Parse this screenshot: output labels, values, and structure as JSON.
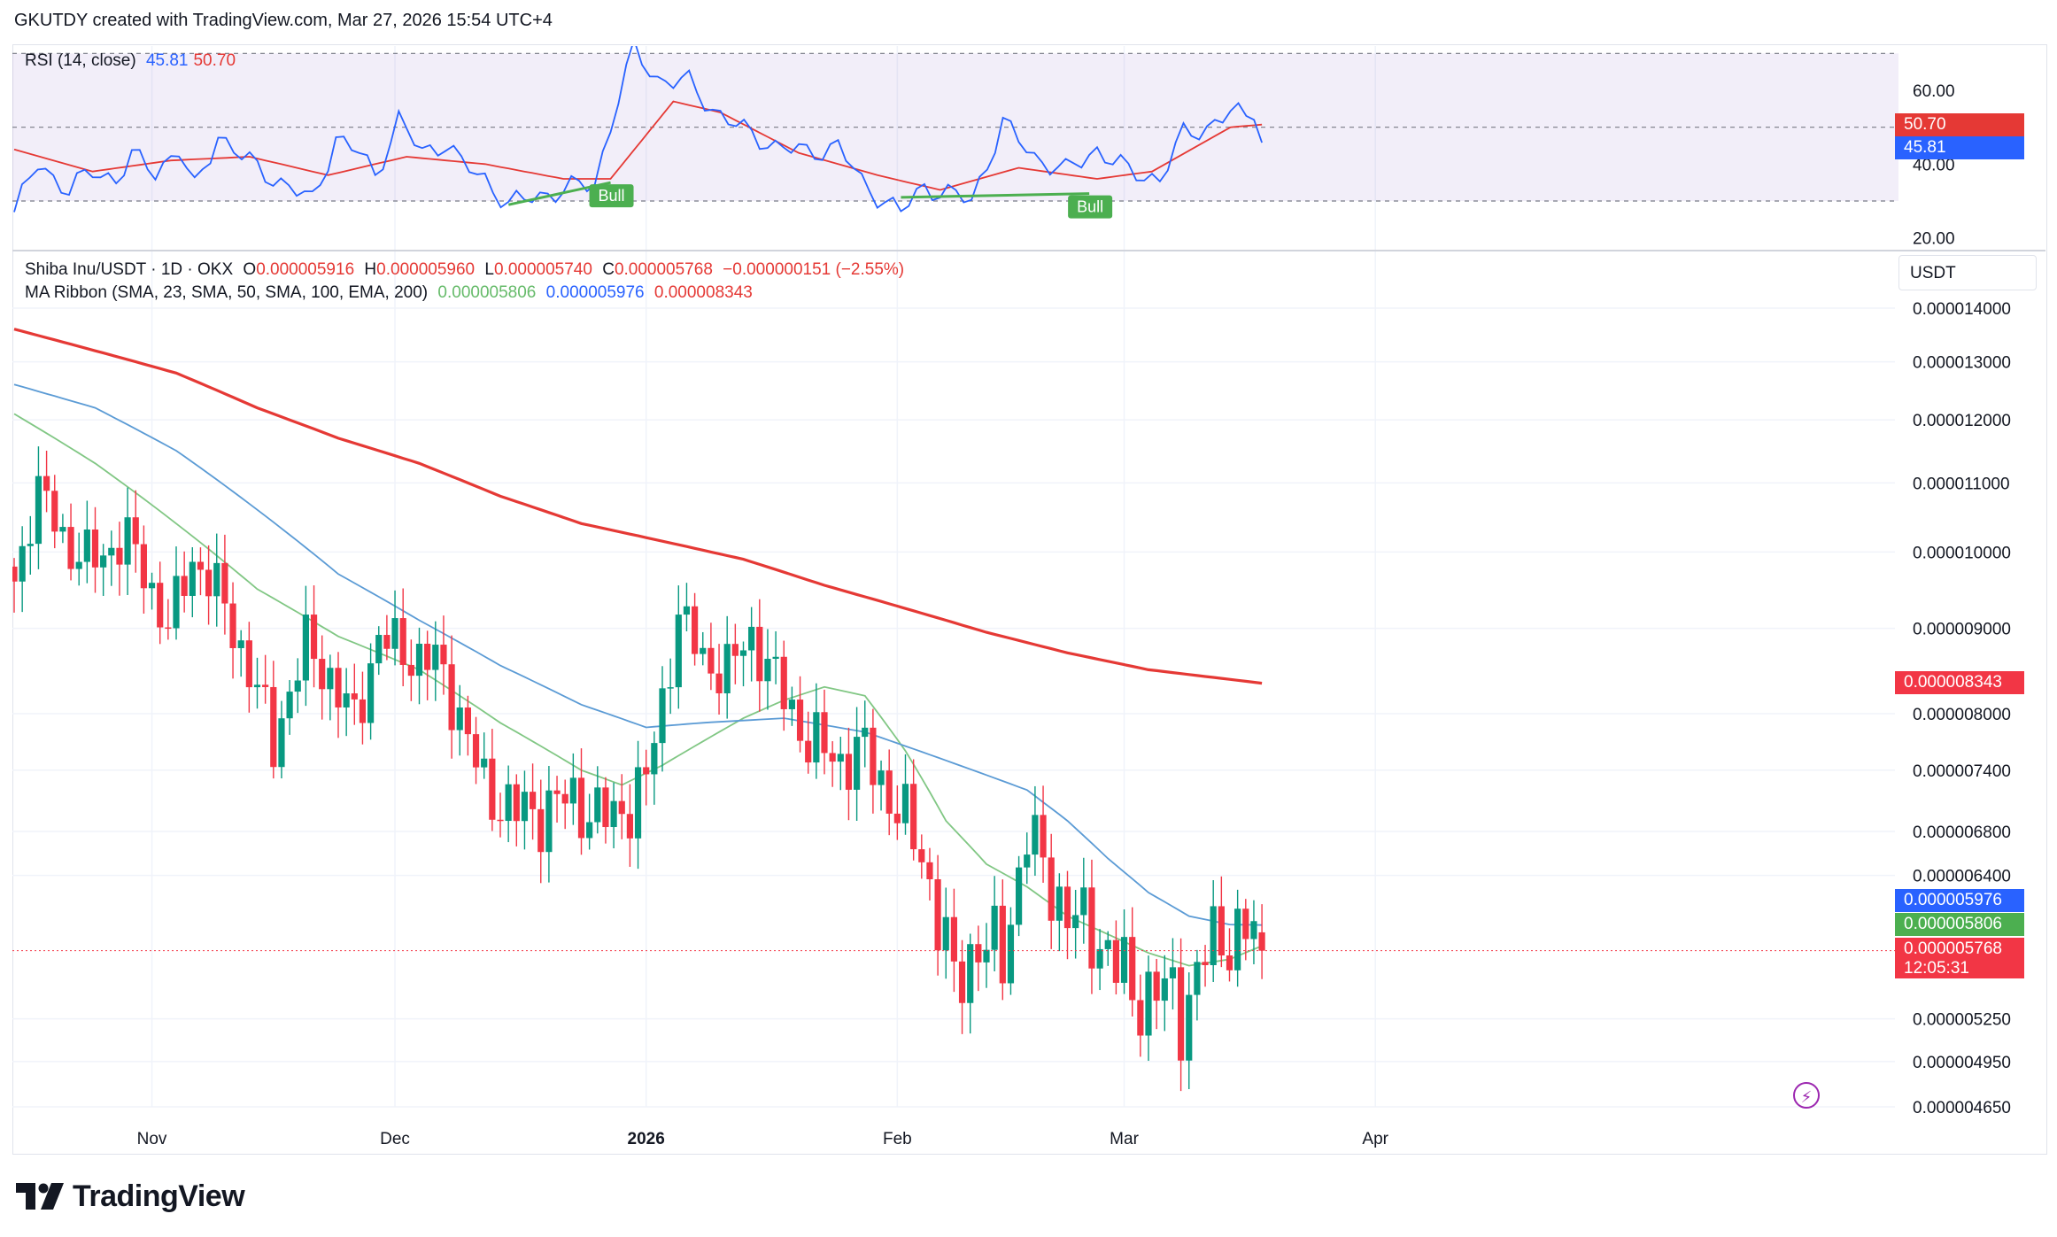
{
  "header": {
    "attribution": "GKUTDY created with TradingView.com, Mar 27, 2026 15:54 UTC+4"
  },
  "rsi": {
    "title": "RSI (14, close)",
    "value": "45.81",
    "ma_value": "50.70",
    "axis_ticks": [
      "60.00",
      "40.00",
      "20.00"
    ],
    "signal_label_1": "Bull",
    "signal_label_2": "Bull",
    "colors": {
      "rsi": "#2962ff",
      "ma": "#e53935",
      "band": "#7e57c2",
      "bull": "#4caf50"
    }
  },
  "main": {
    "symbol_line": "Shiba Inu/USDT · 1D · OKX",
    "o_label": "O",
    "o_value": "0.000005916",
    "h_label": "H",
    "h_value": "0.000005960",
    "l_label": "L",
    "l_value": "0.000005740",
    "c_label": "C",
    "c_value": "0.000005768",
    "change": "−0.000000151 (−2.55%)",
    "ribbon_title": "MA Ribbon (SMA, 23, SMA, 50, SMA, 100, EMA, 200)",
    "ribbon_v1": "0.000005806",
    "ribbon_v2": "0.000005976",
    "ribbon_v3": "0.000008343",
    "currency": "USDT",
    "last_price": "0.000005768",
    "countdown": "12:05:31",
    "ma50_price": "0.000005976",
    "ma23_price": "0.000005806",
    "ema200_price": "0.000008343"
  },
  "brand": {
    "name": "TradingView"
  },
  "chart_data": {
    "type": "candlestick",
    "title": "Shiba Inu/USDT · 1D · OKX",
    "xlabel": "",
    "ylabel": "USDT",
    "scale": "log",
    "ylim": [
      4.65e-06,
      1.45e-05
    ],
    "y_ticks": [
      "0.000014000",
      "0.000013000",
      "0.000012000",
      "0.000011000",
      "0.000010000",
      "0.000009000",
      "0.000008000",
      "0.000007400",
      "0.000006800",
      "0.000006400",
      "0.000005250",
      "0.000004950",
      "0.000004650"
    ],
    "x_ticks": [
      "Nov",
      "Dec",
      "2026",
      "Feb",
      "Mar",
      "Apr"
    ],
    "x_tick_days": [
      17,
      47,
      78,
      109,
      137,
      168
    ],
    "days": 155,
    "close_checkpoints": [
      [
        0,
        9.6
      ],
      [
        3,
        10.9
      ],
      [
        7,
        10.0
      ],
      [
        10,
        9.9
      ],
      [
        14,
        10.2
      ],
      [
        19,
        9.0
      ],
      [
        22,
        9.9
      ],
      [
        25,
        9.5
      ],
      [
        29,
        8.5
      ],
      [
        32,
        7.7
      ],
      [
        36,
        8.8
      ],
      [
        39,
        8.4
      ],
      [
        42,
        7.9
      ],
      [
        45,
        8.9
      ],
      [
        48,
        8.7
      ],
      [
        52,
        8.6
      ],
      [
        55,
        8.0
      ],
      [
        58,
        7.2
      ],
      [
        62,
        7.0
      ],
      [
        64,
        6.95
      ],
      [
        67,
        7.1
      ],
      [
        70,
        7.05
      ],
      [
        74,
        6.9
      ],
      [
        78,
        7.3
      ],
      [
        80,
        8.1
      ],
      [
        82,
        9.2
      ],
      [
        85,
        8.6
      ],
      [
        88,
        8.5
      ],
      [
        91,
        8.9
      ],
      [
        95,
        8.2
      ],
      [
        98,
        7.7
      ],
      [
        102,
        7.5
      ],
      [
        105,
        7.6
      ],
      [
        109,
        7.0
      ],
      [
        112,
        6.6
      ],
      [
        116,
        5.5
      ],
      [
        119,
        5.85
      ],
      [
        122,
        5.7
      ],
      [
        125,
        6.8
      ],
      [
        128,
        6.3
      ],
      [
        131,
        6.0
      ],
      [
        135,
        5.8
      ],
      [
        138,
        5.4
      ],
      [
        141,
        5.5
      ],
      [
        144,
        5.3
      ],
      [
        147,
        5.75
      ],
      [
        150,
        5.9
      ],
      [
        152,
        5.95
      ],
      [
        154,
        5.768
      ]
    ],
    "series": [
      {
        "name": "SMA 23",
        "color": "#81c784",
        "points": [
          [
            0,
            12.1
          ],
          [
            10,
            11.3
          ],
          [
            20,
            10.4
          ],
          [
            30,
            9.5
          ],
          [
            40,
            8.9
          ],
          [
            50,
            8.5
          ],
          [
            60,
            7.9
          ],
          [
            70,
            7.4
          ],
          [
            75,
            7.25
          ],
          [
            80,
            7.45
          ],
          [
            90,
            7.95
          ],
          [
            95,
            8.15
          ],
          [
            100,
            8.3
          ],
          [
            105,
            8.2
          ],
          [
            110,
            7.6
          ],
          [
            115,
            6.9
          ],
          [
            120,
            6.5
          ],
          [
            125,
            6.3
          ],
          [
            130,
            6.05
          ],
          [
            135,
            5.9
          ],
          [
            140,
            5.75
          ],
          [
            145,
            5.65
          ],
          [
            150,
            5.7
          ],
          [
            154,
            5.806
          ]
        ]
      },
      {
        "name": "SMA 50",
        "color": "#5b9bd5",
        "points": [
          [
            0,
            12.6
          ],
          [
            10,
            12.2
          ],
          [
            20,
            11.5
          ],
          [
            30,
            10.6
          ],
          [
            40,
            9.7
          ],
          [
            50,
            9.1
          ],
          [
            60,
            8.55
          ],
          [
            70,
            8.1
          ],
          [
            78,
            7.85
          ],
          [
            85,
            7.9
          ],
          [
            95,
            7.95
          ],
          [
            105,
            7.8
          ],
          [
            110,
            7.65
          ],
          [
            120,
            7.35
          ],
          [
            125,
            7.2
          ],
          [
            130,
            6.9
          ],
          [
            135,
            6.55
          ],
          [
            140,
            6.25
          ],
          [
            145,
            6.05
          ],
          [
            150,
            5.98
          ],
          [
            154,
            5.976
          ]
        ]
      },
      {
        "name": "EMA 200",
        "color": "#e53935",
        "points": [
          [
            0,
            13.6
          ],
          [
            10,
            13.2
          ],
          [
            20,
            12.8
          ],
          [
            30,
            12.2
          ],
          [
            40,
            11.7
          ],
          [
            50,
            11.3
          ],
          [
            60,
            10.8
          ],
          [
            70,
            10.4
          ],
          [
            78,
            10.2
          ],
          [
            90,
            9.9
          ],
          [
            100,
            9.55
          ],
          [
            110,
            9.25
          ],
          [
            120,
            8.95
          ],
          [
            130,
            8.7
          ],
          [
            140,
            8.5
          ],
          [
            154,
            8.343
          ]
        ]
      }
    ],
    "series_units": "1e-6 USDT",
    "rsi_series": {
      "name": "RSI 14",
      "checkpoints": [
        [
          0,
          27
        ],
        [
          3,
          40
        ],
        [
          7,
          33
        ],
        [
          10,
          38
        ],
        [
          13,
          36
        ],
        [
          15,
          42
        ],
        [
          18,
          38
        ],
        [
          21,
          44
        ],
        [
          23,
          33
        ],
        [
          26,
          48
        ],
        [
          29,
          42
        ],
        [
          31,
          39
        ],
        [
          34,
          35
        ],
        [
          38,
          30
        ],
        [
          41,
          47
        ],
        [
          44,
          43
        ],
        [
          46,
          37
        ],
        [
          49,
          52
        ],
        [
          52,
          43
        ],
        [
          55,
          46
        ],
        [
          57,
          40
        ],
        [
          60,
          36
        ],
        [
          63,
          29
        ],
        [
          66,
          31
        ],
        [
          70,
          33
        ],
        [
          74,
          35
        ],
        [
          77,
          58
        ],
        [
          79,
          71
        ],
        [
          82,
          63
        ],
        [
          86,
          62
        ],
        [
          89,
          55
        ],
        [
          93,
          49
        ],
        [
          97,
          45
        ],
        [
          101,
          43
        ],
        [
          105,
          45
        ],
        [
          108,
          35
        ],
        [
          111,
          30
        ],
        [
          113,
          27
        ],
        [
          116,
          34
        ],
        [
          119,
          32
        ],
        [
          122,
          30
        ],
        [
          126,
          51
        ],
        [
          130,
          42
        ],
        [
          134,
          38
        ],
        [
          138,
          44
        ],
        [
          142,
          38
        ],
        [
          146,
          36
        ],
        [
          149,
          48
        ],
        [
          152,
          50
        ],
        [
          155,
          54
        ],
        [
          158,
          52
        ],
        [
          159,
          45.81
        ]
      ],
      "ma_checkpoints": [
        [
          0,
          44
        ],
        [
          10,
          38
        ],
        [
          20,
          41
        ],
        [
          30,
          42
        ],
        [
          40,
          37
        ],
        [
          50,
          42
        ],
        [
          60,
          40
        ],
        [
          70,
          36
        ],
        [
          76,
          36
        ],
        [
          84,
          57
        ],
        [
          90,
          54
        ],
        [
          100,
          43
        ],
        [
          110,
          37
        ],
        [
          118,
          33
        ],
        [
          128,
          39
        ],
        [
          138,
          36
        ],
        [
          145,
          38
        ],
        [
          150,
          44
        ],
        [
          155,
          50
        ],
        [
          159,
          50.7
        ]
      ],
      "ylim": [
        18,
        72
      ],
      "upper_band": 70,
      "mid_band": 50,
      "lower_band": 30,
      "bull_divergences": [
        {
          "from": [
            63,
            29
          ],
          "to": [
            76,
            35
          ]
        },
        {
          "from": [
            113,
            31
          ],
          "to": [
            137,
            32
          ]
        }
      ]
    }
  }
}
